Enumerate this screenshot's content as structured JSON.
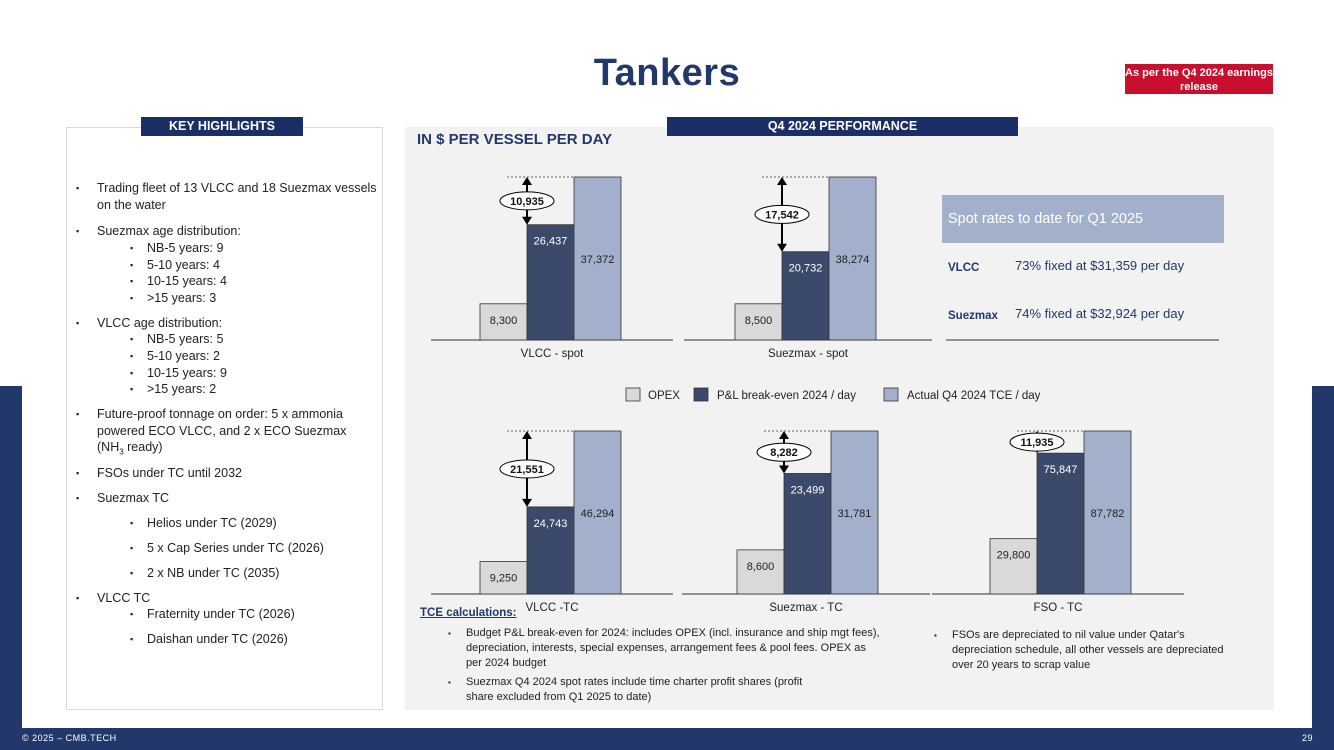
{
  "title": "Tankers",
  "badge": "As per the Q4 2024 earnings release",
  "highlights": {
    "label": "KEY HIGHLIGHTS",
    "items": [
      {
        "text": "Trading fleet of 13 VLCC and 18 Suezmax vessels on the water"
      },
      {
        "text": "Suezmax age distribution:",
        "subs": [
          "NB-5 years: 9",
          "5-10 years: 4",
          "10-15 years: 4",
          ">15 years: 3"
        ]
      },
      {
        "text": "VLCC age distribution:",
        "subs": [
          "NB-5 years: 5",
          "5-10 years: 2",
          "10-15 years: 9",
          ">15 years: 2"
        ]
      },
      {
        "text_a": "Future-proof tonnage on order: 5 x ammonia powered ECO VLCC, and 2 x ECO Suezmax (NH",
        "sub3": "3",
        "text_b": " ready)"
      },
      {
        "text": "FSOs under TC until 2032"
      },
      {
        "text": "Suezmax TC",
        "subs": [
          "Helios under TC (2029)",
          "5 x Cap Series under TC (2026)",
          "2 x NB under TC  (2035)"
        ]
      },
      {
        "text": "VLCC TC",
        "subs": [
          "Fraternity under TC (2026)",
          "Daishan under TC (2026)"
        ]
      }
    ]
  },
  "performance": {
    "label": "Q4 2024 PERFORMANCE",
    "subtitle": "IN $ PER VESSEL PER DAY"
  },
  "chart_data": {
    "type": "bar",
    "series_names": [
      "OPEX",
      "P&L break-even 2024 / day",
      "Actual Q4 2024 TCE / day"
    ],
    "colors": [
      "#d9d9d9",
      "#3b4a6b",
      "#a3b0cc"
    ],
    "charts": [
      {
        "category": "VLCC - spot",
        "values": [
          "8,300",
          "26,437",
          "37,372"
        ],
        "gap": "10,935"
      },
      {
        "category": "Suezmax - spot",
        "values": [
          "8,500",
          "20,732",
          "38,274"
        ],
        "gap": "17,542"
      },
      {
        "category": "VLCC -TC",
        "values": [
          "9,250",
          "24,743",
          "46,294"
        ],
        "gap": "21,551"
      },
      {
        "category": "Suezmax - TC",
        "values": [
          "8,600",
          "23,499",
          "31,781"
        ],
        "gap": "8,282"
      },
      {
        "category": "FSO - TC",
        "values": [
          "29,800",
          "75,847",
          "87,782"
        ],
        "gap": "11,935"
      }
    ]
  },
  "spot": {
    "header": "Spot rates to date for Q1 2025",
    "rows": [
      {
        "label": "VLCC",
        "value": "73% fixed at $31,359 per day"
      },
      {
        "label": "Suezmax",
        "value": "74% fixed at $32,924 per day"
      }
    ]
  },
  "tce": {
    "title": "TCE calculations:",
    "notes": [
      "Budget P&L break-even for 2024: includes OPEX (incl. insurance and ship mgt fees), depreciation, interests, special expenses, arrangement fees & pool fees. OPEX as per 2024 budget",
      "Suezmax Q4 2024 spot rates include time charter profit shares (profit share excluded from Q1 2025 to date)",
      "FSOs are depreciated to nil value under Qatar's depreciation schedule, all other vessels are depreciated over 20 years to scrap value"
    ]
  },
  "footer": {
    "copyright": "© 2025 – CMB.TECH",
    "page": "29"
  }
}
